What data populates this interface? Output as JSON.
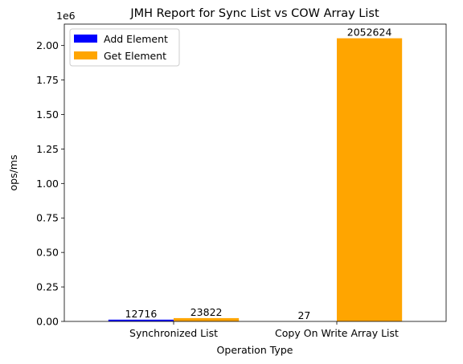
{
  "chart_data": {
    "type": "bar",
    "title": "JMH Report for Sync List vs COW Array List",
    "xlabel": "Operation Type",
    "ylabel": "ops/ms",
    "y_offset_text": "1e6",
    "categories": [
      "Synchronized List",
      "Copy On Write Array List"
    ],
    "series": [
      {
        "name": "Add Element",
        "color": "#0000ff",
        "values": [
          12716,
          27
        ],
        "labels": [
          "12716",
          "27"
        ]
      },
      {
        "name": "Get Element",
        "color": "#ffa500",
        "values": [
          23822,
          2052624
        ],
        "labels": [
          "23822",
          "2052624"
        ]
      }
    ],
    "ylim": [
      0,
      2155255
    ],
    "y_ticks": [
      0,
      250000,
      500000,
      750000,
      1000000,
      1250000,
      1500000,
      1750000,
      2000000
    ],
    "y_tick_labels": [
      "0.00",
      "0.25",
      "0.50",
      "0.75",
      "1.00",
      "1.25",
      "1.50",
      "1.75",
      "2.00"
    ],
    "legend_position": "upper-left",
    "grid": false
  }
}
